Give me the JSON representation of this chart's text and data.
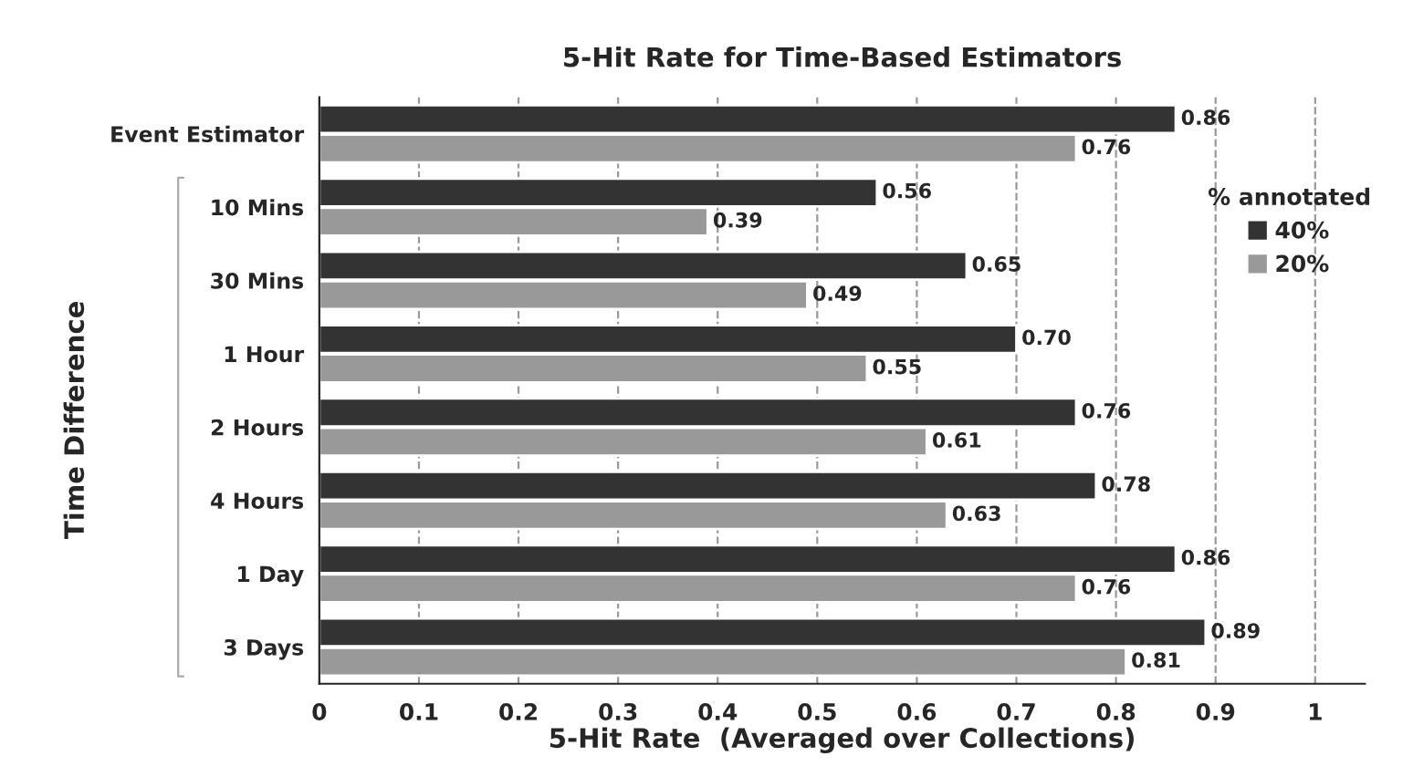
{
  "chart_data": {
    "type": "bar",
    "orientation": "horizontal",
    "title": "5-Hit Rate for Time-Based Estimators",
    "xlabel": "5-Hit Rate  (Averaged over Collections)",
    "ylabel": "Time Difference",
    "legend_title": "% annotated",
    "categories": [
      "Event Estimator",
      "10 Mins",
      "30 Mins",
      "1 Hour",
      "2 Hours",
      "4 Hours",
      "1 Day",
      "3 Days"
    ],
    "series": [
      {
        "name": "40%",
        "color": "#333333",
        "values": [
          0.86,
          0.56,
          0.65,
          0.7,
          0.76,
          0.78,
          0.86,
          0.89
        ],
        "value_labels": [
          "0.86",
          "0.56",
          "0.65",
          "0.70",
          "0.76",
          "0.78",
          "0.86",
          "0.89"
        ]
      },
      {
        "name": "20%",
        "color": "#999999",
        "values": [
          0.76,
          0.39,
          0.49,
          0.55,
          0.61,
          0.63,
          0.76,
          0.81
        ],
        "value_labels": [
          "0.76",
          "0.39",
          "0.49",
          "0.55",
          "0.61",
          "0.63",
          "0.76",
          "0.81"
        ]
      }
    ],
    "xlim": [
      0,
      1.05
    ],
    "xticks": [
      0,
      0.1,
      0.2,
      0.3,
      0.4,
      0.5,
      0.6,
      0.7,
      0.8,
      0.9,
      1
    ],
    "grid": "x",
    "legend": "right"
  }
}
